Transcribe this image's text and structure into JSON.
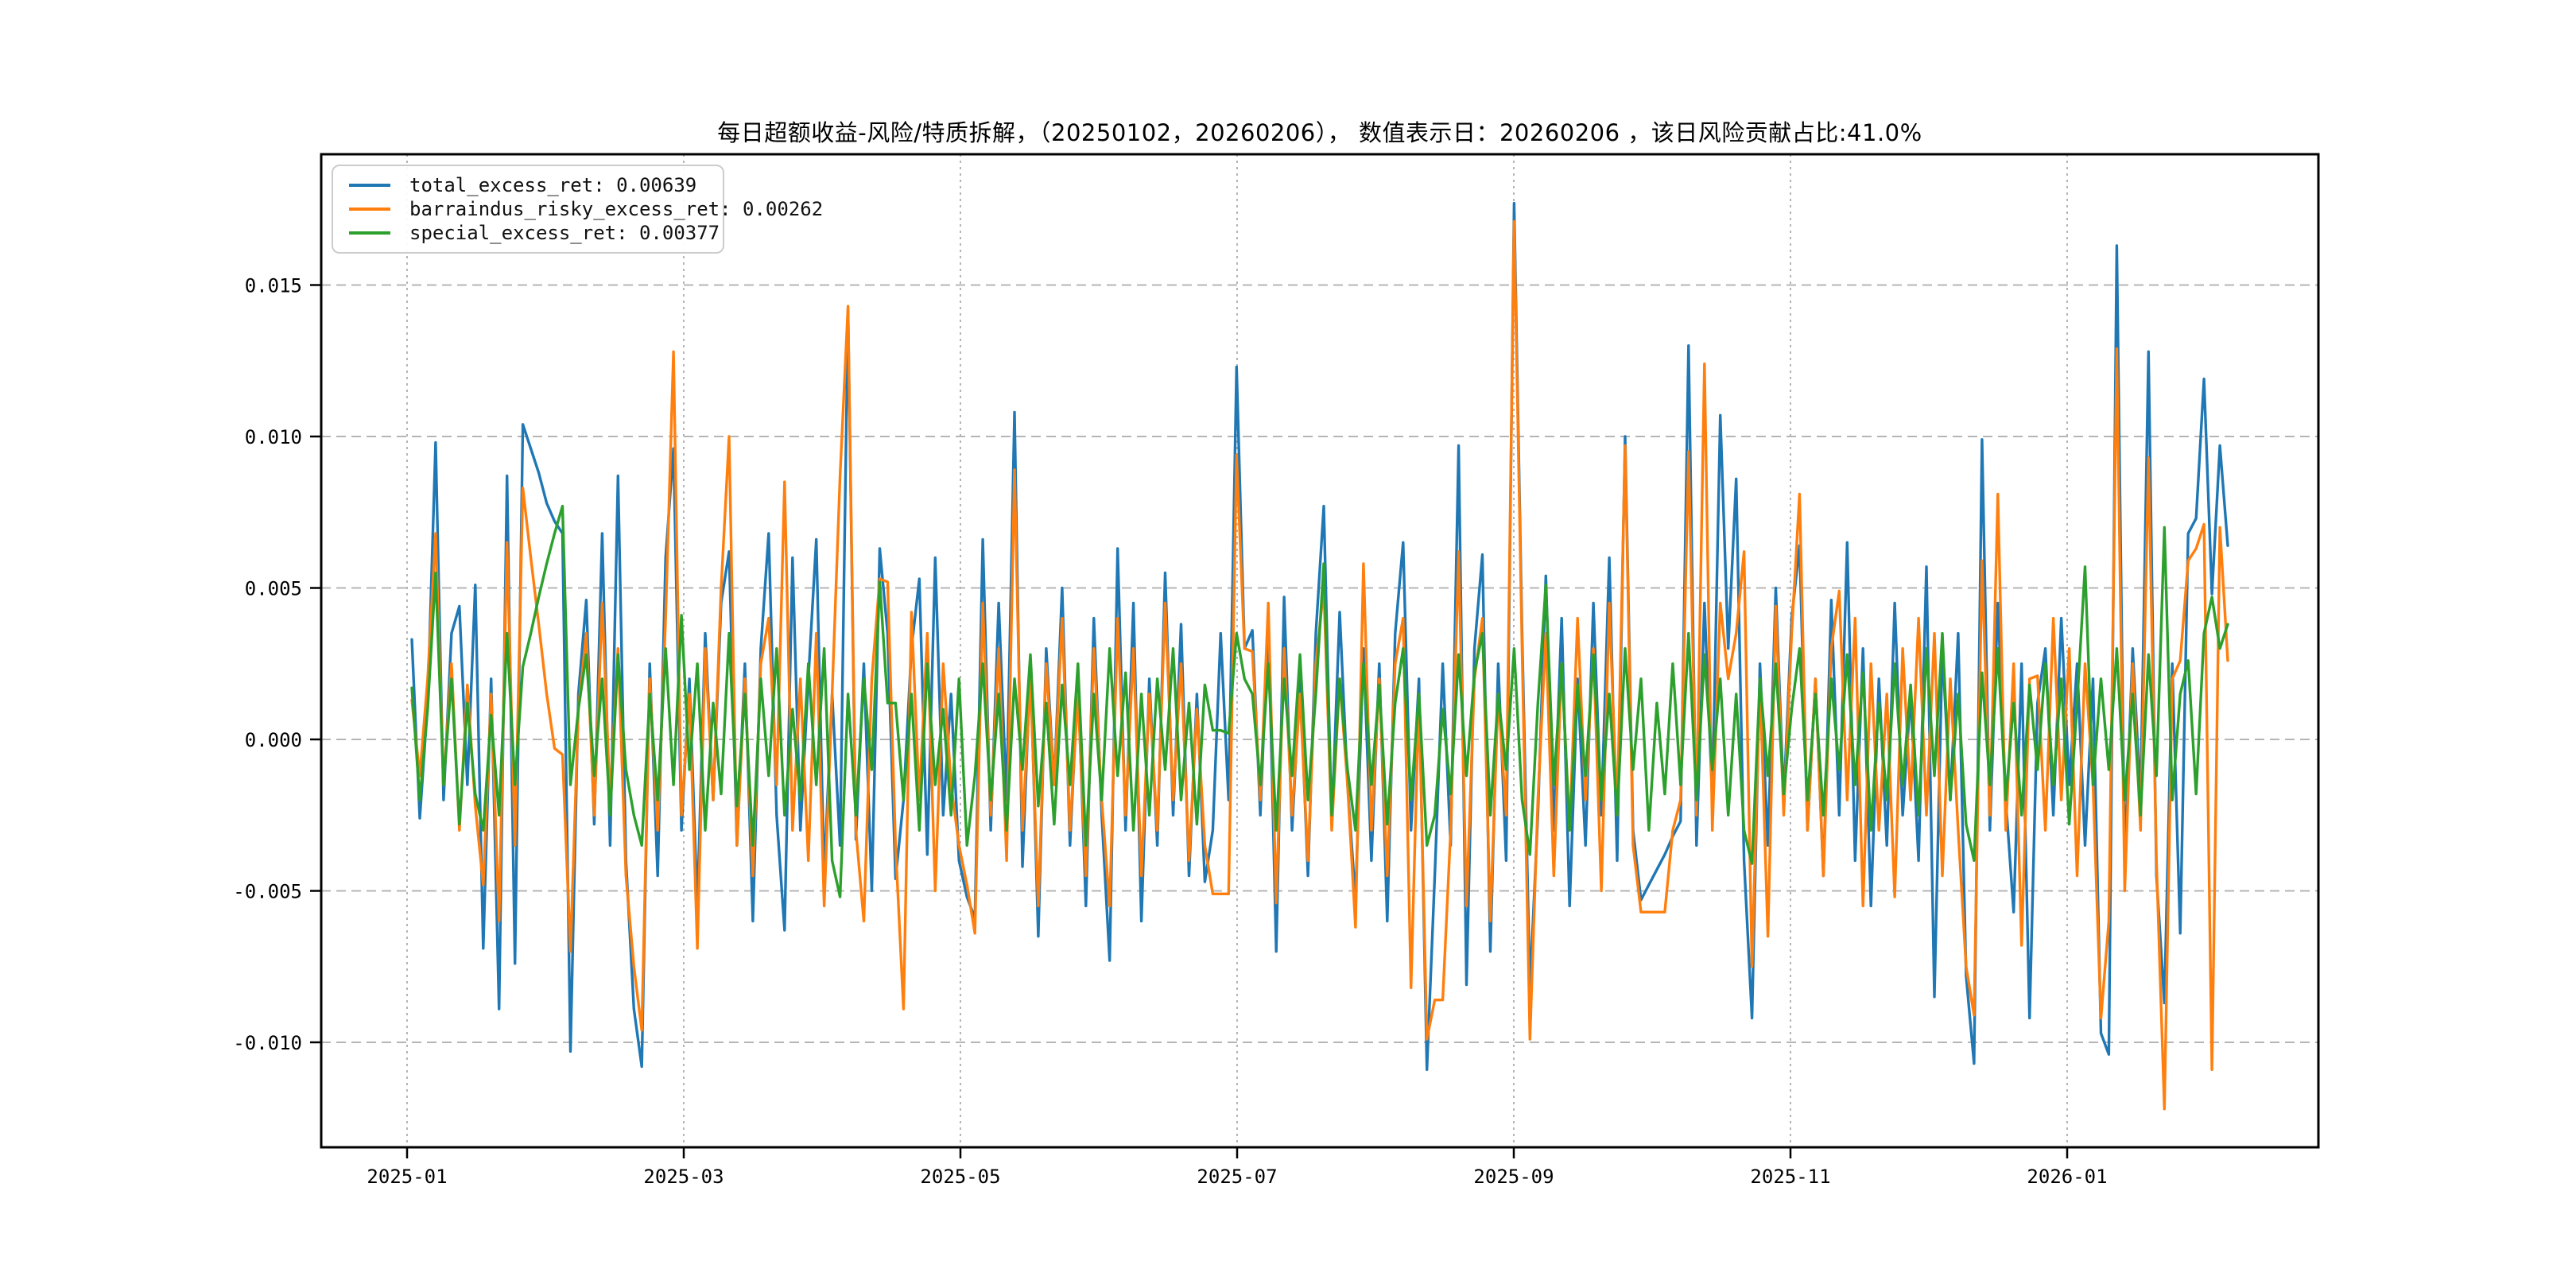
{
  "title": "每日超额收益-风险/特质拆解，（20250102，20260206）， 数值表示日：20260206 ，该日风险贡献占比:41.0%",
  "chart_data": {
    "type": "line",
    "title": "每日超额收益-风险/特质拆解，（20250102，20260206）， 数值表示日：20260206 ，该日风险贡献占比:41.0%",
    "date_range": [
      "20250102",
      "20260206"
    ],
    "risk_contribution_pct": "41.0%",
    "value_display_date": "20260206",
    "grid": true,
    "legend_position": "upper left",
    "xlabel": "",
    "ylabel": "",
    "ylim": [
      -0.0135,
      0.0193
    ],
    "x_tick_labels": [
      "2025-01",
      "2025-03",
      "2025-05",
      "2025-07",
      "2025-09",
      "2025-11",
      "2026-01"
    ],
    "y_tick_values": [
      0.015,
      0.01,
      0.005,
      0.0,
      -0.005,
      -0.01
    ],
    "y_tick_labels": [
      "0.015",
      "0.010",
      "0.005",
      "0.000",
      "-0.005",
      "-0.010"
    ],
    "series": [
      {
        "name": "total_excess_ret",
        "label": "total_excess_ret: 0.00639",
        "last_value": 0.00639,
        "color": "#1f77b4",
        "scale": 0.0001,
        "values": [
          33,
          -26,
          12,
          98,
          -20,
          35,
          44,
          -15,
          51,
          -69,
          20,
          -89,
          87,
          -74,
          104,
          96,
          88,
          78,
          72,
          68,
          -103,
          15,
          46,
          -28,
          68,
          -35,
          87,
          -40,
          -89,
          -108,
          25,
          -45,
          60,
          96,
          -30,
          20,
          -55,
          35,
          -20,
          45,
          62,
          -35,
          25,
          -60,
          30,
          68,
          -25,
          -63,
          60,
          -30,
          20,
          66,
          -45,
          15,
          -35,
          142,
          -33,
          25,
          -50,
          63,
          35,
          -46,
          -20,
          30,
          53,
          -38,
          60,
          -25,
          15,
          -40,
          -52,
          -59,
          66,
          -30,
          45,
          -20,
          108,
          -42,
          25,
          -65,
          30,
          -15,
          50,
          -35,
          20,
          -55,
          40,
          -25,
          -73,
          63,
          -30,
          45,
          -60,
          20,
          -35,
          55,
          -25,
          38,
          -45,
          15,
          -47,
          -30,
          35,
          -20,
          123,
          30,
          36,
          -25,
          40,
          -70,
          47,
          -30,
          20,
          -45,
          35,
          77,
          -28,
          42,
          -15,
          -53,
          30,
          -40,
          25,
          -60,
          35,
          65,
          -30,
          20,
          -109,
          -45,
          25,
          -35,
          97,
          -81,
          30,
          61,
          -70,
          25,
          -40,
          177,
          35,
          -82,
          -25,
          54,
          -30,
          40,
          -55,
          20,
          -35,
          45,
          -25,
          60,
          -40,
          100,
          -30,
          -53,
          -48,
          -43,
          -38,
          -32,
          -27,
          130,
          -35,
          45,
          -20,
          107,
          30,
          86,
          -40,
          -92,
          25,
          -35,
          50,
          -20,
          40,
          64,
          -30,
          20,
          -45,
          46,
          -25,
          65,
          -40,
          30,
          -55,
          20,
          -35,
          45,
          -25,
          15,
          -40,
          57,
          -85,
          30,
          -20,
          35,
          -78,
          -107,
          99,
          -30,
          45,
          -20,
          -57,
          25,
          -92,
          12,
          30,
          -25,
          40,
          -15,
          25,
          -35,
          20,
          -97,
          -104,
          163,
          -40,
          30,
          -20,
          128,
          -45,
          -87,
          25,
          -64,
          68,
          73,
          119,
          48,
          97,
          64
        ]
      },
      {
        "name": "barraindus_risky_excess_ret",
        "label": "barraindus_risky_excess_ret: 0.00262",
        "last_value": 0.00262,
        "color": "#ff7f0e",
        "scale": 0.0001,
        "values": [
          13,
          -12,
          20,
          68,
          -15,
          25,
          -30,
          18,
          -22,
          -48,
          15,
          -60,
          65,
          -35,
          83,
          60,
          38,
          15,
          -3,
          -5,
          -70,
          10,
          35,
          -25,
          45,
          -20,
          30,
          -45,
          -75,
          -96,
          20,
          -30,
          40,
          128,
          -25,
          15,
          -69,
          30,
          -20,
          50,
          100,
          -35,
          20,
          -45,
          25,
          40,
          -15,
          85,
          -30,
          20,
          -40,
          35,
          -55,
          15,
          87,
          143,
          -30,
          -60,
          20,
          53,
          52,
          -35,
          -89,
          42,
          -20,
          35,
          -50,
          25,
          -15,
          -35,
          -48,
          -64,
          45,
          -25,
          30,
          -40,
          89,
          -30,
          20,
          -55,
          25,
          -15,
          40,
          -30,
          15,
          -45,
          30,
          -20,
          -55,
          40,
          -25,
          30,
          -45,
          15,
          -30,
          45,
          -20,
          25,
          -40,
          10,
          -35,
          -51,
          -51,
          -51,
          94,
          30,
          29,
          -20,
          45,
          -54,
          30,
          -25,
          15,
          -40,
          25,
          50,
          -30,
          20,
          -15,
          -62,
          58,
          -30,
          20,
          -45,
          25,
          40,
          -82,
          15,
          -99,
          -86,
          -86,
          -30,
          62,
          -55,
          20,
          40,
          -60,
          15,
          -25,
          171,
          30,
          -99,
          -20,
          35,
          -45,
          25,
          -30,
          40,
          -20,
          30,
          -50,
          45,
          -25,
          97,
          -35,
          -57,
          -57,
          -57,
          -57,
          -30,
          -20,
          95,
          -25,
          124,
          -30,
          45,
          20,
          35,
          62,
          -75,
          20,
          -65,
          44,
          -25,
          35,
          81,
          -30,
          20,
          -45,
          30,
          49,
          -20,
          40,
          -55,
          25,
          -30,
          15,
          -52,
          30,
          -20,
          40,
          -25,
          35,
          -45,
          20,
          -30,
          -75,
          -91,
          59,
          -25,
          81,
          -30,
          25,
          -68,
          20,
          21,
          -30,
          40,
          -20,
          30,
          -45,
          25,
          -15,
          -92,
          -60,
          129,
          -50,
          25,
          -30,
          93,
          -40,
          -122,
          20,
          26,
          59,
          63,
          71,
          -109,
          70,
          26
        ]
      },
      {
        "name": "special_excess_ret",
        "label": "special_excess_ret: 0.00377",
        "last_value": 0.00377,
        "color": "#2ca02c",
        "scale": 0.0001,
        "values": [
          17,
          -20,
          10,
          55,
          -15,
          20,
          -28,
          12,
          -18,
          -30,
          8,
          -25,
          35,
          -15,
          24,
          35,
          47,
          58,
          68,
          77,
          -15,
          10,
          28,
          -12,
          20,
          -25,
          28,
          -10,
          -25,
          -35,
          15,
          -20,
          30,
          -15,
          41,
          -10,
          25,
          -30,
          12,
          -18,
          35,
          -22,
          15,
          -35,
          20,
          -12,
          30,
          -25,
          10,
          -20,
          25,
          -15,
          30,
          -40,
          -52,
          15,
          -25,
          20,
          -10,
          52,
          12,
          12,
          -20,
          15,
          -30,
          25,
          -15,
          10,
          -25,
          20,
          -35,
          -12,
          25,
          -20,
          15,
          -30,
          20,
          -10,
          28,
          -22,
          12,
          -28,
          18,
          -15,
          25,
          -35,
          15,
          -20,
          30,
          -12,
          22,
          -30,
          15,
          -25,
          20,
          -10,
          30,
          -20,
          12,
          -28,
          18,
          3,
          3,
          2,
          35,
          20,
          15,
          -15,
          25,
          -30,
          20,
          -12,
          28,
          -20,
          15,
          58,
          -25,
          20,
          -10,
          -30,
          25,
          -15,
          18,
          -28,
          12,
          30,
          -20,
          15,
          -35,
          -25,
          10,
          -18,
          28,
          -12,
          22,
          35,
          -25,
          15,
          -10,
          30,
          -20,
          -38,
          12,
          51,
          -15,
          25,
          -30,
          18,
          -12,
          28,
          -20,
          15,
          -25,
          30,
          -10,
          20,
          -30,
          12,
          -18,
          25,
          -15,
          35,
          -20,
          28,
          -10,
          20,
          -25,
          15,
          -30,
          -41,
          20,
          -12,
          25,
          -18,
          10,
          30,
          -20,
          15,
          -25,
          20,
          -10,
          28,
          -15,
          22,
          -30,
          12,
          -20,
          25,
          -15,
          18,
          -25,
          30,
          -12,
          35,
          -20,
          15,
          -28,
          -40,
          22,
          -15,
          30,
          -20,
          12,
          -25,
          18,
          -10,
          25,
          -15,
          20,
          -28,
          12,
          57,
          -15,
          20,
          -10,
          30,
          -20,
          15,
          -25,
          28,
          -12,
          70,
          -20,
          15,
          26,
          -18,
          35,
          47,
          30,
          38
        ]
      }
    ]
  }
}
